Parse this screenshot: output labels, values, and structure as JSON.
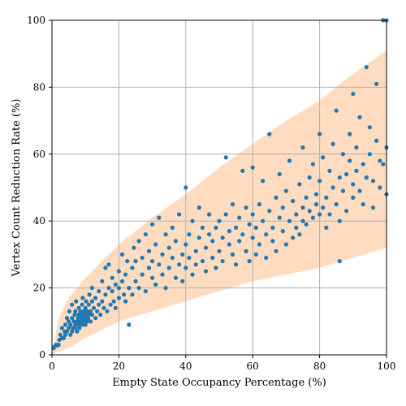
{
  "chart_data": {
    "type": "scatter",
    "title": "",
    "xlabel": "Empty State Occupancy Percentage (%)",
    "ylabel": "Vertex Count Reduction Rate (%)",
    "xlim": [
      0,
      100
    ],
    "ylim": [
      0,
      100
    ],
    "xticks": [
      0,
      20,
      40,
      60,
      80,
      100
    ],
    "yticks": [
      0,
      20,
      40,
      60,
      80,
      100
    ],
    "grid": true,
    "colors": {
      "points": "#1f77b4",
      "band": "#ffdcc0"
    },
    "band": {
      "x": [
        0,
        2,
        5,
        10,
        15,
        20,
        30,
        40,
        50,
        60,
        70,
        80,
        90,
        100
      ],
      "upper": [
        0,
        11,
        17,
        23,
        28,
        33,
        41,
        48,
        56,
        63,
        70,
        76,
        84,
        91
      ],
      "lower": [
        0,
        1,
        2,
        5,
        7.5,
        10,
        13,
        16,
        19,
        22,
        24,
        26,
        29,
        32
      ]
    },
    "points": [
      [
        0.5,
        2
      ],
      [
        0.8,
        2.5
      ],
      [
        1.2,
        3
      ],
      [
        1.5,
        2.8
      ],
      [
        2,
        3
      ],
      [
        2.2,
        4.5
      ],
      [
        2.5,
        6
      ],
      [
        3,
        5
      ],
      [
        3,
        8
      ],
      [
        3.5,
        5
      ],
      [
        3.8,
        7
      ],
      [
        4,
        6
      ],
      [
        4,
        9
      ],
      [
        4.5,
        11
      ],
      [
        4.5,
        7
      ],
      [
        5,
        8
      ],
      [
        5,
        10
      ],
      [
        5.2,
        13
      ],
      [
        5.5,
        6
      ],
      [
        5.5,
        9
      ],
      [
        6,
        7
      ],
      [
        6,
        11
      ],
      [
        6,
        15
      ],
      [
        6.3,
        8
      ],
      [
        6.5,
        10
      ],
      [
        6.8,
        12
      ],
      [
        7,
        8
      ],
      [
        7,
        9
      ],
      [
        7,
        13
      ],
      [
        7.2,
        16
      ],
      [
        7.5,
        7
      ],
      [
        7.5,
        10
      ],
      [
        7.8,
        11
      ],
      [
        8,
        9
      ],
      [
        8,
        12
      ],
      [
        8,
        14
      ],
      [
        8.2,
        8
      ],
      [
        8.5,
        10
      ],
      [
        8.5,
        13
      ],
      [
        8.8,
        11
      ],
      [
        9,
        9
      ],
      [
        9,
        12
      ],
      [
        9,
        15
      ],
      [
        9.2,
        17
      ],
      [
        9.5,
        10
      ],
      [
        9.5,
        13
      ],
      [
        9.8,
        11
      ],
      [
        10,
        9
      ],
      [
        10,
        12
      ],
      [
        10,
        14
      ],
      [
        10.2,
        16
      ],
      [
        10.5,
        10
      ],
      [
        10.5,
        13
      ],
      [
        10.8,
        11
      ],
      [
        11,
        12
      ],
      [
        11,
        15
      ],
      [
        11.2,
        18
      ],
      [
        11.5,
        10
      ],
      [
        11.5,
        13
      ],
      [
        12,
        12
      ],
      [
        12,
        16
      ],
      [
        12,
        20
      ],
      [
        12.5,
        14
      ],
      [
        13,
        11
      ],
      [
        13,
        17
      ],
      [
        13.5,
        13
      ],
      [
        14,
        15
      ],
      [
        14,
        19
      ],
      [
        14.5,
        12
      ],
      [
        15,
        16
      ],
      [
        15,
        22
      ],
      [
        15.5,
        14
      ],
      [
        16,
        18
      ],
      [
        16,
        26
      ],
      [
        16.5,
        13
      ],
      [
        17,
        20
      ],
      [
        17,
        27
      ],
      [
        17.5,
        15
      ],
      [
        18,
        19
      ],
      [
        18,
        23
      ],
      [
        18.5,
        16
      ],
      [
        19,
        21
      ],
      [
        19,
        14
      ],
      [
        20,
        20
      ],
      [
        20,
        25
      ],
      [
        20,
        17
      ],
      [
        21,
        22
      ],
      [
        21,
        30
      ],
      [
        21.5,
        18
      ],
      [
        22,
        24
      ],
      [
        22,
        16
      ],
      [
        22.5,
        28
      ],
      [
        23,
        20
      ],
      [
        23,
        9
      ],
      [
        24,
        26
      ],
      [
        24,
        18
      ],
      [
        24.5,
        32
      ],
      [
        25,
        22
      ],
      [
        25,
        28
      ],
      [
        26,
        20
      ],
      [
        26,
        34
      ],
      [
        27,
        24
      ],
      [
        27,
        29
      ],
      [
        28,
        19
      ],
      [
        28,
        36
      ],
      [
        29,
        26
      ],
      [
        29,
        31
      ],
      [
        30,
        23
      ],
      [
        30,
        28
      ],
      [
        30,
        39
      ],
      [
        31,
        21
      ],
      [
        31,
        33
      ],
      [
        32,
        27
      ],
      [
        32,
        41
      ],
      [
        33,
        24
      ],
      [
        33,
        30
      ],
      [
        34,
        36
      ],
      [
        34,
        20
      ],
      [
        35,
        26
      ],
      [
        35,
        32
      ],
      [
        36,
        29
      ],
      [
        36,
        38
      ],
      [
        37,
        23
      ],
      [
        37,
        34
      ],
      [
        38,
        27
      ],
      [
        38,
        42
      ],
      [
        39,
        30
      ],
      [
        39,
        22
      ],
      [
        40,
        33
      ],
      [
        40,
        26
      ],
      [
        40,
        50
      ],
      [
        41,
        36
      ],
      [
        41,
        29
      ],
      [
        42,
        24
      ],
      [
        42,
        40
      ],
      [
        43,
        31
      ],
      [
        43,
        27
      ],
      [
        44,
        35
      ],
      [
        44,
        44
      ],
      [
        45,
        28
      ],
      [
        45,
        38
      ],
      [
        46,
        32
      ],
      [
        46,
        25
      ],
      [
        47,
        36
      ],
      [
        47,
        42
      ],
      [
        48,
        29
      ],
      [
        48,
        34
      ],
      [
        49,
        38
      ],
      [
        49,
        26
      ],
      [
        50,
        31
      ],
      [
        50,
        40
      ],
      [
        51,
        35
      ],
      [
        51,
        28
      ],
      [
        52,
        42
      ],
      [
        52,
        59
      ],
      [
        53,
        33
      ],
      [
        53,
        37
      ],
      [
        54,
        30
      ],
      [
        54,
        45
      ],
      [
        55,
        38
      ],
      [
        55,
        27
      ],
      [
        56,
        34
      ],
      [
        56,
        41
      ],
      [
        57,
        36
      ],
      [
        57,
        55
      ],
      [
        58,
        31
      ],
      [
        58,
        44
      ],
      [
        59,
        39
      ],
      [
        59,
        28
      ],
      [
        60,
        35
      ],
      [
        60,
        42
      ],
      [
        60,
        56
      ],
      [
        61,
        38
      ],
      [
        61,
        30
      ],
      [
        62,
        45
      ],
      [
        62,
        33
      ],
      [
        63,
        40
      ],
      [
        63,
        52
      ],
      [
        64,
        36
      ],
      [
        64,
        29
      ],
      [
        65,
        43
      ],
      [
        65,
        66
      ],
      [
        66,
        38
      ],
      [
        66,
        34
      ],
      [
        67,
        47
      ],
      [
        67,
        31
      ],
      [
        68,
        41
      ],
      [
        68,
        54
      ],
      [
        69,
        37
      ],
      [
        69,
        44
      ],
      [
        70,
        33
      ],
      [
        70,
        49
      ],
      [
        71,
        40
      ],
      [
        71,
        58
      ],
      [
        72,
        35
      ],
      [
        72,
        46
      ],
      [
        73,
        42
      ],
      [
        73,
        38
      ],
      [
        74,
        51
      ],
      [
        74,
        36
      ],
      [
        75,
        44
      ],
      [
        75,
        40
      ],
      [
        75,
        62
      ],
      [
        76,
        47
      ],
      [
        76,
        39
      ],
      [
        77,
        53
      ],
      [
        77,
        43
      ],
      [
        78,
        41
      ],
      [
        78,
        57
      ],
      [
        79,
        45
      ],
      [
        79,
        48
      ],
      [
        80,
        42
      ],
      [
        80,
        52
      ],
      [
        80,
        66
      ],
      [
        81,
        44
      ],
      [
        81,
        59
      ],
      [
        82,
        47
      ],
      [
        82,
        38
      ],
      [
        83,
        55
      ],
      [
        83,
        42
      ],
      [
        84,
        50
      ],
      [
        84,
        63
      ],
      [
        85,
        45
      ],
      [
        85,
        73
      ],
      [
        86,
        53
      ],
      [
        86,
        40
      ],
      [
        86,
        28
      ],
      [
        87,
        49
      ],
      [
        87,
        60
      ],
      [
        88,
        54
      ],
      [
        88,
        43
      ],
      [
        89,
        58
      ],
      [
        89,
        66
      ],
      [
        90,
        51
      ],
      [
        90,
        47
      ],
      [
        90,
        78
      ],
      [
        91,
        55
      ],
      [
        91,
        62
      ],
      [
        92,
        49
      ],
      [
        92,
        71
      ],
      [
        93,
        57
      ],
      [
        93,
        45
      ],
      [
        94,
        53
      ],
      [
        94,
        86
      ],
      [
        95,
        60
      ],
      [
        95,
        68
      ],
      [
        96,
        52
      ],
      [
        96,
        44
      ],
      [
        97,
        64
      ],
      [
        97,
        81
      ],
      [
        98,
        50
      ],
      [
        98,
        58
      ],
      [
        99,
        57
      ],
      [
        99,
        100
      ],
      [
        100,
        48
      ],
      [
        100,
        62
      ],
      [
        100,
        100
      ]
    ]
  }
}
